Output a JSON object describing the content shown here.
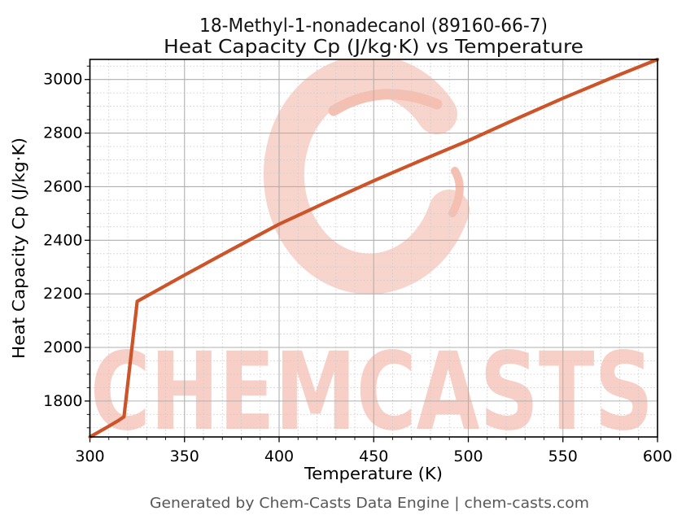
{
  "title": {
    "line1": "18-Methyl-1-nonadecanol (89160-66-7)",
    "line2": "Heat Capacity Cp (J/kg·K) vs Temperature"
  },
  "footer": "Generated by Chem-Casts Data Engine | chem-casts.com",
  "watermark": {
    "text": "CHEMCASTS",
    "logo": "chemcasts-c-swirl-logo"
  },
  "colors": {
    "line": "#cd5429",
    "grid_major": "#b0b0b0",
    "grid_minor": "#cccccc",
    "axis": "#000000",
    "title_text": "#141414",
    "footer_text": "#575757",
    "watermark_ring": "#f8d5cc",
    "watermark_accent": "#f5c0b1",
    "watermark_text": "#f7cfc6"
  },
  "chart_data": {
    "type": "line",
    "title": "18-Methyl-1-nonadecanol (89160-66-7) Heat Capacity Cp (J/kg·K) vs Temperature",
    "xlabel": "Temperature (K)",
    "ylabel": "Heat Capacity Cp (J/kg·K)",
    "xlim": [
      300,
      600
    ],
    "ylim": [
      1666,
      3075
    ],
    "x_major_ticks": [
      300,
      350,
      400,
      450,
      500,
      550,
      600
    ],
    "x_minor_step": 10,
    "y_major_ticks": [
      1800,
      2000,
      2200,
      2400,
      2600,
      2800,
      3000
    ],
    "y_minor_step": 50,
    "grid": {
      "major": "solid",
      "minor": "dotted",
      "visible": true
    },
    "legend": "none",
    "series": [
      {
        "name": "Heat Capacity Cp",
        "color": "#cd5429",
        "x": [
          300,
          305,
          310,
          315,
          318,
          325,
          350,
          375,
          400,
          425,
          450,
          475,
          500,
          525,
          550,
          575,
          600
        ],
        "y": [
          1666,
          1686,
          1706,
          1727,
          1741,
          2172,
          2270,
          2366,
          2460,
          2542,
          2622,
          2698,
          2772,
          2852,
          2930,
          3004,
          3075
        ]
      }
    ]
  }
}
